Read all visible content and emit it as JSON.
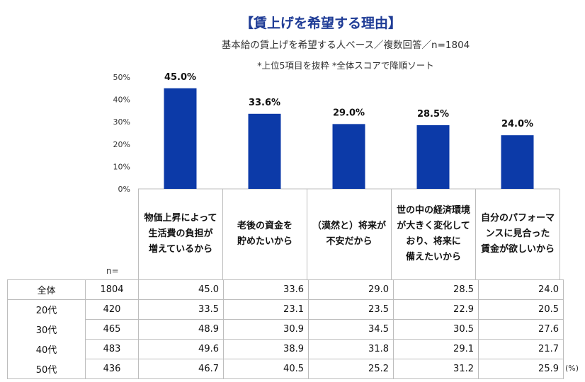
{
  "header": {
    "title": "【賃上げを希望する理由】",
    "subtitle": "基本給の賃上げを希望する人ベース／複数回答／n=1804",
    "note": "*上位5項目を抜粋  *全体スコアで降順ソート"
  },
  "chart_data": {
    "type": "bar",
    "categories": [
      "物価上昇によって生活費の負担が増えているから",
      "老後の資金を貯めたいから",
      "（漠然と）将来が不安だから",
      "世の中の経済環境が大きく変化しており、将来に備えたいから",
      "自分のパフォーマンスに見合った賃金が欲しいから"
    ],
    "category_lines": [
      [
        "物価上昇によって",
        "生活費の負担が",
        "増えているから"
      ],
      [
        "老後の資金を",
        "貯めたいから"
      ],
      [
        "（漠然と）将来が",
        "不安だから"
      ],
      [
        "世の中の経済環境",
        "が大きく変化して",
        "おり、将来に",
        "備えたいから"
      ],
      [
        "自分のパフォーマ",
        "ンスに見合った",
        "賃金が欲しいから"
      ]
    ],
    "values": [
      45.0,
      33.6,
      29.0,
      28.5,
      24.0
    ],
    "data_labels": [
      "45.0%",
      "33.6%",
      "29.0%",
      "28.5%",
      "24.0%"
    ],
    "ylim": [
      0,
      50
    ],
    "y_ticks": [
      "0%",
      "10%",
      "20%",
      "30%",
      "40%",
      "50%"
    ],
    "bar_color": "#0c3aa8",
    "title": "【賃上げを希望する理由】"
  },
  "table": {
    "n_header": "n=",
    "unit": "(%)",
    "rows": [
      {
        "segment": "全体",
        "n": "1804",
        "values": [
          "45.0",
          "33.6",
          "29.0",
          "28.5",
          "24.0"
        ]
      },
      {
        "segment": "20代",
        "n": "420",
        "values": [
          "33.5",
          "23.1",
          "23.5",
          "22.9",
          "20.5"
        ]
      },
      {
        "segment": "30代",
        "n": "465",
        "values": [
          "48.9",
          "30.9",
          "34.5",
          "30.5",
          "27.6"
        ]
      },
      {
        "segment": "40代",
        "n": "483",
        "values": [
          "49.6",
          "38.9",
          "31.8",
          "29.1",
          "21.7"
        ]
      },
      {
        "segment": "50代",
        "n": "436",
        "values": [
          "46.7",
          "40.5",
          "25.2",
          "31.2",
          "25.9"
        ]
      }
    ]
  }
}
